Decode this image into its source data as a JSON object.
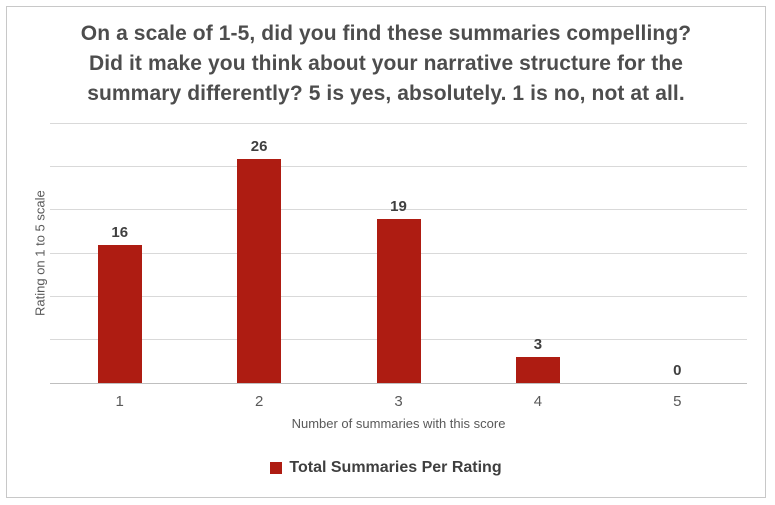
{
  "chart_data": {
    "type": "bar",
    "title": "On a scale of 1-5, did you find these summaries compelling? Did it make you think about your narrative structure for the summary differently? 5 is yes, absolutely. 1 is no, not at all.",
    "title_lines": [
      "On a scale of 1-5, did you find these summaries compelling?",
      "Did it make you think about your narrative structure for the",
      "summary differently? 5 is yes, absolutely. 1 is no, not at all."
    ],
    "categories": [
      "1",
      "2",
      "3",
      "4",
      "5"
    ],
    "values": [
      16,
      26,
      19,
      3,
      0
    ],
    "series_name": "Total Summaries Per Rating",
    "xlabel": "Number of summaries with this score",
    "ylabel": "Rating on 1 to 5 scale",
    "ylim": [
      0,
      30
    ],
    "ytick_step": 5,
    "y_tick_labels_visible": false,
    "grid": "horizontal",
    "data_labels": true,
    "legend_position": "bottom",
    "colors": {
      "bar": "#AE1C12",
      "gridline": "#D9D9D9",
      "axis_line": "#BFBFBF",
      "title_text": "#4D4D4D",
      "label_text": "#3F3F3F",
      "tick_text": "#595959",
      "frame_border": "#C8C8C8"
    }
  }
}
